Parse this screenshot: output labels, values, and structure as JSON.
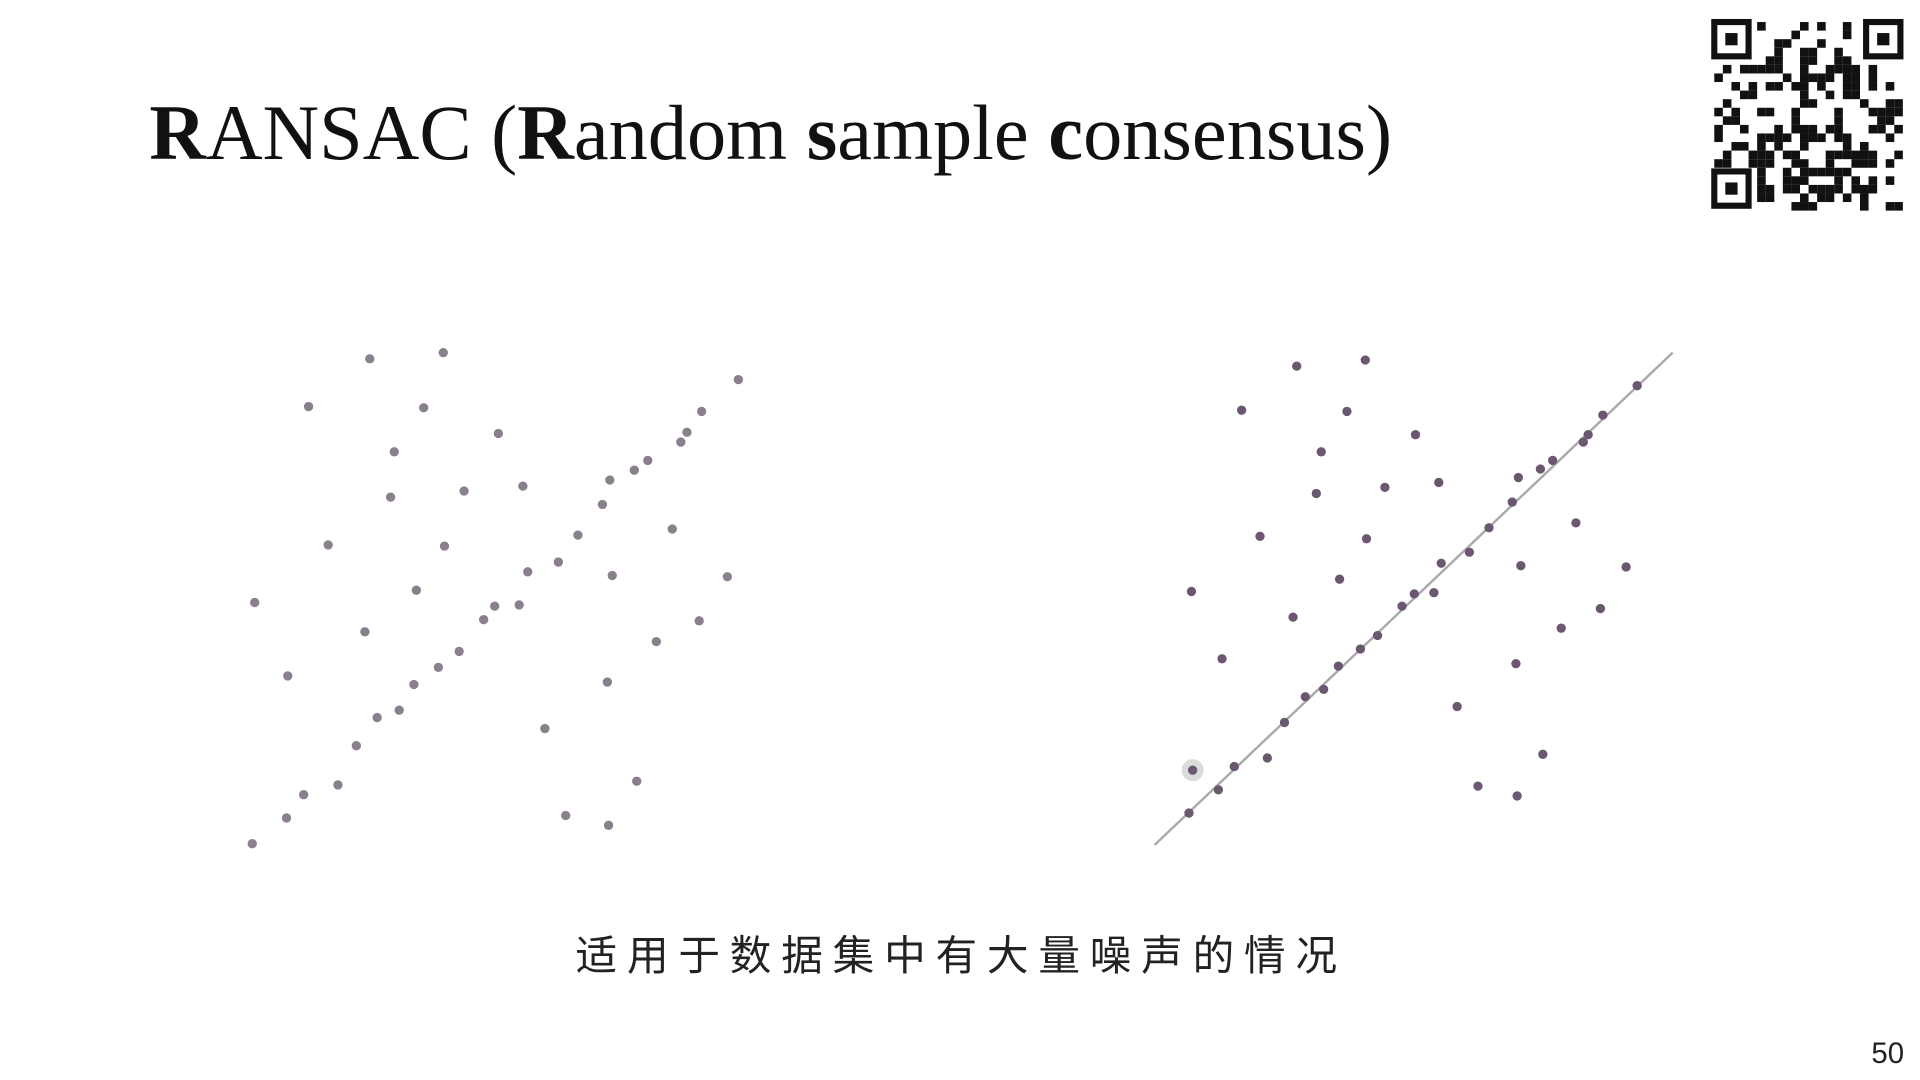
{
  "title": {
    "parts": [
      "R",
      "ANSAC (",
      "R",
      "andom ",
      "s",
      "ample ",
      "c",
      "onsensus)"
    ]
  },
  "caption": "适用于数据集中有大量噪声的情况",
  "page_number": "50"
}
